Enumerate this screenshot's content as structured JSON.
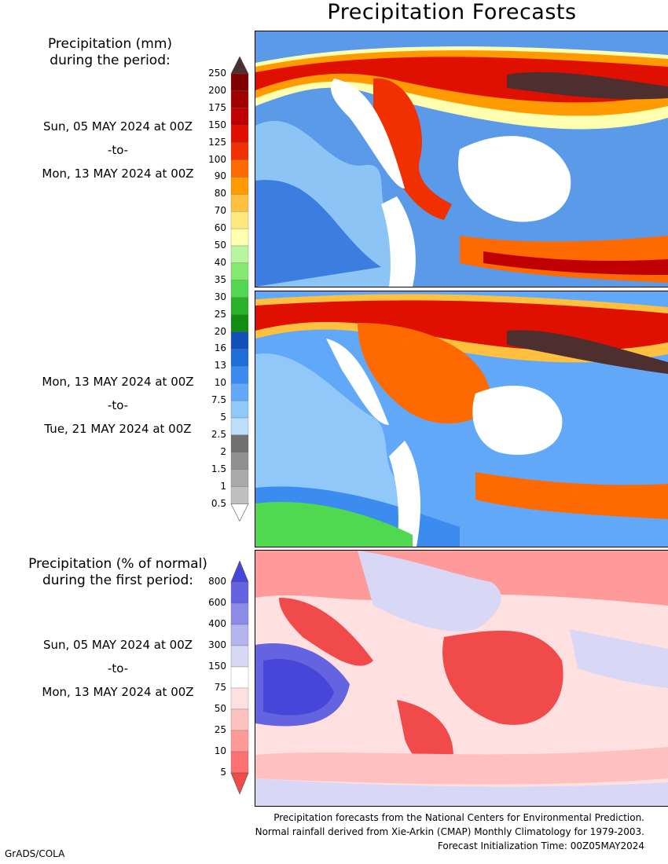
{
  "title": "Precipitation Forecasts",
  "precip_header": [
    "Precipitation (mm)",
    "during the period:"
  ],
  "period1": {
    "start": "Sun, 05 MAY 2024 at 00Z",
    "sep": "-to-",
    "end": "Mon, 13 MAY 2024 at 00Z"
  },
  "period2": {
    "start": "Mon, 13 MAY 2024 at 00Z",
    "sep": "-to-",
    "end": "Tue, 21 MAY 2024 at 00Z"
  },
  "pct_header": [
    "Precipitation (% of normal)",
    "during the first period:"
  ],
  "period3": {
    "start": "Sun, 05 MAY 2024 at 00Z",
    "sep": "-to-",
    "end": "Mon, 13 MAY 2024 at 00Z"
  },
  "precip_scale": {
    "labels": [
      "250",
      "200",
      "175",
      "150",
      "125",
      "100",
      "90",
      "80",
      "70",
      "60",
      "50",
      "40",
      "35",
      "30",
      "25",
      "20",
      "16",
      "13",
      "10",
      "7.5",
      "5",
      "2.5",
      "2",
      "1.5",
      "1",
      "0.5"
    ],
    "colors": [
      "#4d2f2f",
      "#800000",
      "#a00000",
      "#c00000",
      "#e01000",
      "#f03000",
      "#ff6a00",
      "#ff9a00",
      "#ffc040",
      "#ffe880",
      "#ffffb0",
      "#b8f5a0",
      "#86e870",
      "#50d850",
      "#2ab02a",
      "#128c12",
      "#1050b8",
      "#1e6ed8",
      "#3c8cf0",
      "#62a8f8",
      "#90c8fa",
      "#bcdefb",
      "#707070",
      "#909090",
      "#aaaaaa",
      "#c0c0c0",
      "#ffffff"
    ]
  },
  "pct_scale": {
    "labels": [
      "800",
      "600",
      "400",
      "300",
      "150",
      "75",
      "50",
      "25",
      "10",
      "5"
    ],
    "colors": [
      "#4646d8",
      "#6464e0",
      "#8c8ce6",
      "#b4b4ee",
      "#d8d8f6",
      "#ffffff",
      "#ffe0e0",
      "#ffc0c0",
      "#ff9a9a",
      "#ff7070",
      "#f04a4a"
    ]
  },
  "footer": [
    "Precipitation forecasts from the National Centers for Environmental Prediction.",
    "Normal rainfall derived from Xie-Arkin (CMAP) Monthly Climatology for 1979-2003.",
    "Forecast Initialization Time: 00Z05MAY2024"
  ],
  "credit": "GrADS/COLA"
}
